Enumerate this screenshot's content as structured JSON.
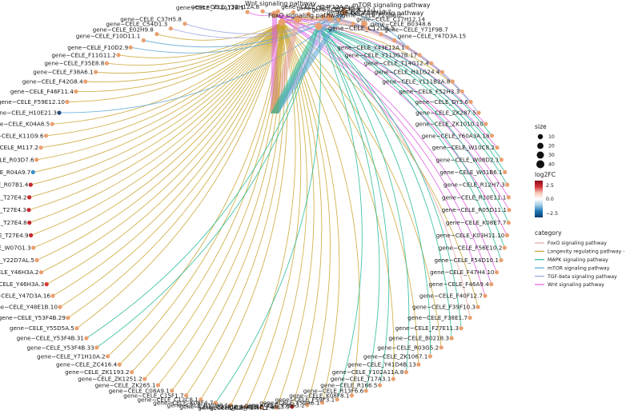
{
  "chart_data": {
    "type": "cnetplot",
    "categories": [
      {
        "name": "Wnt signaling pathway",
        "color": "#e05ce0"
      },
      {
        "name": "mTOR signaling pathway",
        "color": "#5aa6d6"
      },
      {
        "name": "FoxO signaling pathway",
        "color": "#e6a2a0"
      },
      {
        "name": "TGF-beta signaling pathway",
        "color": "#9ba2e0"
      },
      {
        "name": "Longevity regulating pathway - worm",
        "color": "#c9a430"
      },
      {
        "name": "MAPK signaling pathway",
        "color": "#23b996"
      }
    ],
    "hubs": [
      {
        "name": "gene−CELE_C12D8.5",
        "color": "#e9a070"
      }
    ],
    "genes": [
      {
        "name": "gene−CELE_Y71A12B.1",
        "color": "#e9a070",
        "category": "Wnt signaling pathway"
      },
      {
        "name": "gene−CELE_Y32H12A.8",
        "color": "#e9a070",
        "category": "TGF-beta signaling pathway"
      },
      {
        "name": "gene−CELE_Y24F12A.2",
        "color": "#e9a070",
        "category": "FoxO signaling pathway"
      },
      {
        "name": "gene−CELE_Y43F4B.4",
        "color": "#e9a070",
        "category": "Longevity regulating pathway - worm"
      },
      {
        "name": "gene−CELE_F39C12.1",
        "color": "#e9a070",
        "category": "FoxO signaling pathway"
      },
      {
        "name": "gene−CELE_F35H10.7",
        "color": "#e9a070",
        "category": "MAPK signaling pathway"
      },
      {
        "name": "gene−CELE_F20B6.2",
        "color": "#e9a070",
        "category": "MAPK signaling pathway"
      },
      {
        "name": "gene−CELE_C17H12.14",
        "color": "#e9a070",
        "category": "Longevity regulating pathway - worm"
      },
      {
        "name": "gene−CELE_B0348.6",
        "color": "#e9a070",
        "category": "FoxO signaling pathway"
      },
      {
        "name": "gene−CELE_Y71F9B.7",
        "color": "#e9a070",
        "category": "Longevity regulating pathway - worm"
      },
      {
        "name": "gene−CELE_Y47D3A.15",
        "color": "#e9a070",
        "category": "MAPK signaling pathway"
      },
      {
        "name": "gene−CELE_Y43E12A.1",
        "color": "#e9a070",
        "category": "mTOR signaling pathway"
      },
      {
        "name": "gene−CELE_Y113G7B.17",
        "color": "#e9a070",
        "category": "FoxO signaling pathway"
      },
      {
        "name": "gene−CELE_T14G12.4",
        "color": "#e9a070",
        "category": "FoxO signaling pathway"
      },
      {
        "name": "gene−CELE_H31G24.4",
        "color": "#e9a070",
        "category": "FoxO signaling pathway"
      },
      {
        "name": "gene−CELE_Y111B2A.8",
        "color": "#e9a070",
        "category": "FoxO signaling pathway"
      },
      {
        "name": "gene−CELE_F52H3.3",
        "color": "#e9a070",
        "category": "Longevity regulating pathway - worm"
      },
      {
        "name": "gene−CELE_DY3.6",
        "color": "#e9a070",
        "category": "TGF-beta signaling pathway"
      },
      {
        "name": "gene−CELE_ZK287.5",
        "color": "#e9a070",
        "category": "TGF-beta signaling pathway"
      },
      {
        "name": "gene−CELE_ZK1010.10",
        "color": "#e9a070",
        "category": "Wnt signaling pathway"
      },
      {
        "name": "gene−CELE_Y60A3A.18",
        "color": "#e9a070",
        "category": "MAPK signaling pathway"
      },
      {
        "name": "gene−CELE_W10C8.2",
        "color": "#e9a070",
        "category": "Wnt signaling pathway"
      },
      {
        "name": "gene−CELE_W08D2.1",
        "color": "#e9a070",
        "category": "MAPK signaling pathway"
      },
      {
        "name": "gene−CELE_W01B6.1",
        "color": "#e9a070",
        "category": "MAPK signaling pathway"
      },
      {
        "name": "gene−CELE_R12H7.3",
        "color": "#e9a070",
        "category": "MAPK signaling pathway"
      },
      {
        "name": "gene−CELE_R10E11.1",
        "color": "#e9a070",
        "category": "Wnt signaling pathway"
      },
      {
        "name": "gene−CELE_R05D11.1",
        "color": "#e9a070",
        "category": "Wnt signaling pathway"
      },
      {
        "name": "gene−CELE_K08E7.7",
        "color": "#e9a070",
        "category": "MAPK signaling pathway"
      },
      {
        "name": "gene−CELE_K03H11.10",
        "color": "#e9a070",
        "category": "Wnt signaling pathway"
      },
      {
        "name": "gene−CELE_F56E10.2",
        "color": "#e9a070",
        "category": "MAPK signaling pathway"
      },
      {
        "name": "gene−CELE_F54D10.1",
        "color": "#e9a070",
        "category": "MAPK signaling pathway"
      },
      {
        "name": "gene−CELE_F47H4.10",
        "color": "#e9a070",
        "category": "Wnt signaling pathway"
      },
      {
        "name": "gene−CELE_F46A9.4",
        "color": "#e9a070",
        "category": "Wnt signaling pathway"
      },
      {
        "name": "gene−CELE_F40F12.7",
        "color": "#e9a070",
        "category": "Wnt signaling pathway"
      },
      {
        "name": "gene−CELE_F39F10.3",
        "color": "#e9a070",
        "category": "Longevity regulating pathway - worm"
      },
      {
        "name": "gene−CELE_F38E1.7",
        "color": "#e9a070",
        "category": "FoxO signaling pathway"
      },
      {
        "name": "gene−CELE_F27E11.3",
        "color": "#e9a070",
        "category": "MAPK signaling pathway"
      },
      {
        "name": "gene−CELE_B0218.3",
        "color": "#e9a070",
        "category": "MAPK signaling pathway"
      },
      {
        "name": "gene−CELE_R03G5.2",
        "color": "#e9a070",
        "category": "Longevity regulating pathway - worm"
      },
      {
        "name": "gene−CELE_ZK1067.1",
        "color": "#e9a070",
        "category": "MAPK signaling pathway"
      },
      {
        "name": "gene−CELE_Y41D4B.13",
        "color": "#e9a070",
        "category": "Longevity regulating pathway - worm"
      },
      {
        "name": "gene−CELE_Y102A11A.8",
        "color": "#e9a070",
        "category": "MAPK signaling pathway"
      },
      {
        "name": "gene−CELE_T17A3.1",
        "color": "#e9a070",
        "category": "Longevity regulating pathway - worm"
      },
      {
        "name": "gene−CELE_R166.5",
        "color": "#e9a070",
        "category": "MAPK signaling pathway"
      },
      {
        "name": "gene−CELE_R13F6.6",
        "color": "#e9a070",
        "category": "MAPK signaling pathway"
      },
      {
        "name": "gene−CELE_K08F8.1",
        "color": "#e9a070",
        "category": "Longevity regulating pathway - worm"
      },
      {
        "name": "gene−CELE_F59F3.1",
        "color": "#e9a070",
        "category": "MAPK signaling pathway"
      },
      {
        "name": "gene−CELE_F59A6.1",
        "color": "#e9a070",
        "category": "Longevity regulating pathway - worm"
      },
      {
        "name": "gene−CELE_F58A3.2",
        "color": "#e9a070",
        "category": "Longevity regulating pathway - worm"
      },
      {
        "name": "gene−CELE_F48E3.9",
        "color": "#a8252a",
        "category": "Longevity regulating pathway - worm"
      },
      {
        "name": "gene−CELE_F14H12.4",
        "color": "#e9a070",
        "category": "Longevity regulating pathway - worm"
      },
      {
        "name": "gene−CELE_C24A8.4",
        "color": "#e9a070",
        "category": "Longevity regulating pathway - worm"
      },
      {
        "name": "gene−CELE_C23F12.1",
        "color": "#e9a070",
        "category": "Longevity regulating pathway - worm"
      },
      {
        "name": "gene−CELE_R13H8.1",
        "color": "#e9a070",
        "category": "Longevity regulating pathway - worm"
      },
      {
        "name": "gene−CELE_K08F4.7",
        "color": "#e9a070",
        "category": "MAPK signaling pathway"
      },
      {
        "name": "gene−CELE_C12C8.1",
        "color": "#e9a070",
        "category": "Longevity regulating pathway - worm"
      },
      {
        "name": "gene−CELE_C15F1.7",
        "color": "#e9a070",
        "category": "Longevity regulating pathway - worm"
      },
      {
        "name": "gene−CELE_C08A9.1",
        "color": "#e9a070",
        "category": "Longevity regulating pathway - worm"
      },
      {
        "name": "gene−CELE_ZK265.1",
        "color": "#e9a070",
        "category": "Longevity regulating pathway - worm"
      },
      {
        "name": "gene−CELE_ZK1251.2",
        "color": "#e9a070",
        "category": "Longevity regulating pathway - worm"
      },
      {
        "name": "gene−CELE_ZK1193.2",
        "color": "#e9a070",
        "category": "Longevity regulating pathway - worm"
      },
      {
        "name": "gene−CELE_ZC416.4",
        "color": "#e9a070",
        "category": "Longevity regulating pathway - worm"
      },
      {
        "name": "gene−CELE_Y71H10A.2",
        "color": "#e9a070",
        "category": "Longevity regulating pathway - worm"
      },
      {
        "name": "gene−CELE_Y53F4B.33",
        "color": "#e9a070",
        "category": "MAPK signaling pathway"
      },
      {
        "name": "gene−CELE_Y53F4B.31",
        "color": "#e9a070",
        "category": "MAPK signaling pathway"
      },
      {
        "name": "gene−CELE_Y55D5A.5",
        "color": "#e9a070",
        "category": "Longevity regulating pathway - worm"
      },
      {
        "name": "gene−CELE_Y53F4B.29",
        "color": "#e9a070",
        "category": "Longevity regulating pathway - worm"
      },
      {
        "name": "gene−CELE_Y48E1B.10",
        "color": "#e9a070",
        "category": "Longevity regulating pathway - worm"
      },
      {
        "name": "gene−CELE_Y47D3A.16",
        "color": "#e9a070",
        "category": "Longevity regulating pathway - worm"
      },
      {
        "name": "gene−CELE_Y46H3A.3",
        "color": "#d83a36",
        "category": "Longevity regulating pathway - worm"
      },
      {
        "name": "gene−CELE_Y46H3A.2",
        "color": "#e9a070",
        "category": "Longevity regulating pathway - worm"
      },
      {
        "name": "gene−CELE_Y22D7AL.5",
        "color": "#e9a070",
        "category": "Longevity regulating pathway - worm"
      },
      {
        "name": "gene−CELE_W07G1.3",
        "color": "#e9a070",
        "category": "Longevity regulating pathway - worm"
      },
      {
        "name": "gene−CELE_T27E4.9",
        "color": "#c5282d",
        "category": "Longevity regulating pathway - worm"
      },
      {
        "name": "gene−CELE_T27E4.8",
        "color": "#c5282d",
        "category": "Longevity regulating pathway - worm"
      },
      {
        "name": "gene−CELE_T27E4.3",
        "color": "#c5282d",
        "category": "Longevity regulating pathway - worm"
      },
      {
        "name": "gene−CELE_T27E4.2",
        "color": "#c5282d",
        "category": "Longevity regulating pathway - worm"
      },
      {
        "name": "gene−CELE_R07B1.4",
        "color": "#c5282d",
        "category": "Longevity regulating pathway - worm"
      },
      {
        "name": "gene−CELE_R04A9.7",
        "color": "#3a8fc4",
        "category": "Longevity regulating pathway - worm"
      },
      {
        "name": "gene−CELE_R03D7.6",
        "color": "#e9a070",
        "category": "Longevity regulating pathway - worm"
      },
      {
        "name": "gene−CELE_M117.2",
        "color": "#e9a070",
        "category": "Longevity regulating pathway - worm"
      },
      {
        "name": "gene−CELE_K11G9.6",
        "color": "#e9a070",
        "category": "Longevity regulating pathway - worm"
      },
      {
        "name": "gene−CELE_K04A8.5",
        "color": "#e9a070",
        "category": "Longevity regulating pathway - worm"
      },
      {
        "name": "gene−CELE_H10E21.3",
        "color": "#2c4d7a",
        "category": "mTOR signaling pathway"
      },
      {
        "name": "gene−CELE_F59E12.10",
        "color": "#e9a070",
        "category": "Longevity regulating pathway - worm"
      },
      {
        "name": "gene−CELE_F46F11.4",
        "color": "#e9a070",
        "category": "Longevity regulating pathway - worm"
      },
      {
        "name": "gene−CELE_F42G8.4",
        "color": "#e9a070",
        "category": "Longevity regulating pathway - worm"
      },
      {
        "name": "gene−CELE_F38A6.1",
        "color": "#e9a070",
        "category": "Longevity regulating pathway - worm"
      },
      {
        "name": "gene−CELE_F35E8.8",
        "color": "#e9a070",
        "category": "Longevity regulating pathway - worm"
      },
      {
        "name": "gene−CELE_F11G11.2",
        "color": "#e9a070",
        "category": "Longevity regulating pathway - worm"
      },
      {
        "name": "gene−CELE_F10D2.9",
        "color": "#e9a070",
        "category": "mTOR signaling pathway"
      },
      {
        "name": "gene−CELE_F10D11.1",
        "color": "#e9a070",
        "category": "mTOR signaling pathway"
      },
      {
        "name": "gene−CELE_E02H9.8",
        "color": "#e9a070",
        "category": "Longevity regulating pathway - worm"
      },
      {
        "name": "gene−CELE_C54D1.3",
        "color": "#e9a070",
        "category": "TGF-beta signaling pathway"
      },
      {
        "name": "gene−CELE_C37H5.8",
        "color": "#e9a070",
        "category": "TGF-beta signaling pathway"
      }
    ],
    "legend": {
      "size_title": "size",
      "size_values": [
        10,
        20,
        30,
        40
      ],
      "color_title": "log2FC",
      "color_ticks": [
        "2.5",
        "0.0",
        "−2.5"
      ],
      "color_scale": [
        "#8b0a1a",
        "#d6333b",
        "#f6c7b5",
        "#ffffff",
        "#9fcce3",
        "#1f77b4",
        "#0b3c6e"
      ],
      "category_title": "category",
      "placement": "right"
    }
  }
}
